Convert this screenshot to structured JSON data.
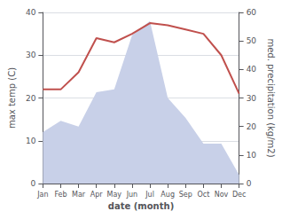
{
  "chart_data": {
    "type": "line",
    "categories": [
      "Jan",
      "Feb",
      "Mar",
      "Apr",
      "May",
      "Jun",
      "Jul",
      "Aug",
      "Sep",
      "Oct",
      "Nov",
      "Dec"
    ],
    "xlabel": "date (month)",
    "ylabel": "max temp (C)",
    "y2label": "med. precipitation (kg/m2)",
    "series": [
      {
        "type": "area",
        "color": "#c8d0e8",
        "axis": "y2",
        "values": [
          18,
          22,
          20,
          32,
          33,
          52,
          57,
          30,
          23,
          14,
          14,
          3
        ]
      },
      {
        "type": "line",
        "color": "#c0504d",
        "values": [
          22,
          22,
          26,
          34,
          33,
          35,
          37.5,
          37,
          36,
          35,
          30,
          21
        ]
      }
    ],
    "ylim": [
      0,
      40
    ],
    "yticks": [
      0,
      10,
      20,
      30,
      40
    ],
    "y2lim": [
      0,
      60
    ],
    "y2ticks": [
      0,
      10,
      20,
      30,
      40,
      50,
      60
    ],
    "grid": true
  }
}
